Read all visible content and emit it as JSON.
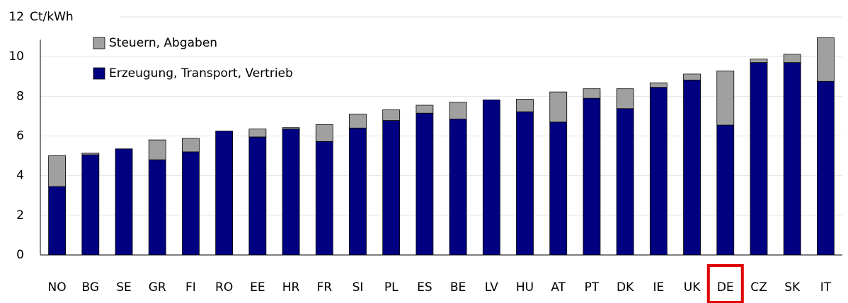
{
  "chart_data": {
    "type": "stacked_bar",
    "y_label": "Ct/kWh",
    "categories": [
      "NO",
      "BG",
      "SE",
      "GR",
      "FI",
      "RO",
      "EE",
      "HR",
      "FR",
      "SI",
      "PL",
      "ES",
      "BE",
      "LV",
      "HU",
      "AT",
      "PT",
      "DK",
      "IE",
      "UK",
      "DE",
      "CZ",
      "SK",
      "IT"
    ],
    "series": [
      {
        "name": "Erzeugung, Transport, Vertrieb",
        "color": "#000080",
        "values": [
          3.45,
          5.05,
          5.35,
          4.8,
          5.2,
          6.25,
          5.95,
          6.35,
          5.72,
          6.4,
          6.78,
          7.15,
          6.85,
          7.82,
          7.22,
          6.7,
          7.9,
          7.38,
          8.45,
          8.82,
          6.55,
          9.7,
          9.7,
          8.75
        ]
      },
      {
        "name": "Steuern, Abgaben",
        "color": "#a0a0a0",
        "values": [
          1.55,
          0.08,
          0,
          1.0,
          0.68,
          0,
          0.4,
          0.07,
          0.85,
          0.7,
          0.54,
          0.4,
          0.85,
          0,
          0.63,
          1.52,
          0.48,
          1.0,
          0.23,
          0.3,
          2.73,
          0.18,
          0.42,
          2.2
        ]
      }
    ],
    "ylim": [
      0,
      12
    ],
    "yticks": [
      0,
      2,
      4,
      6,
      8,
      10,
      12
    ],
    "grid": true,
    "legend": "top-left",
    "highlighted_category": "DE",
    "highlight_color": "#e00000"
  }
}
